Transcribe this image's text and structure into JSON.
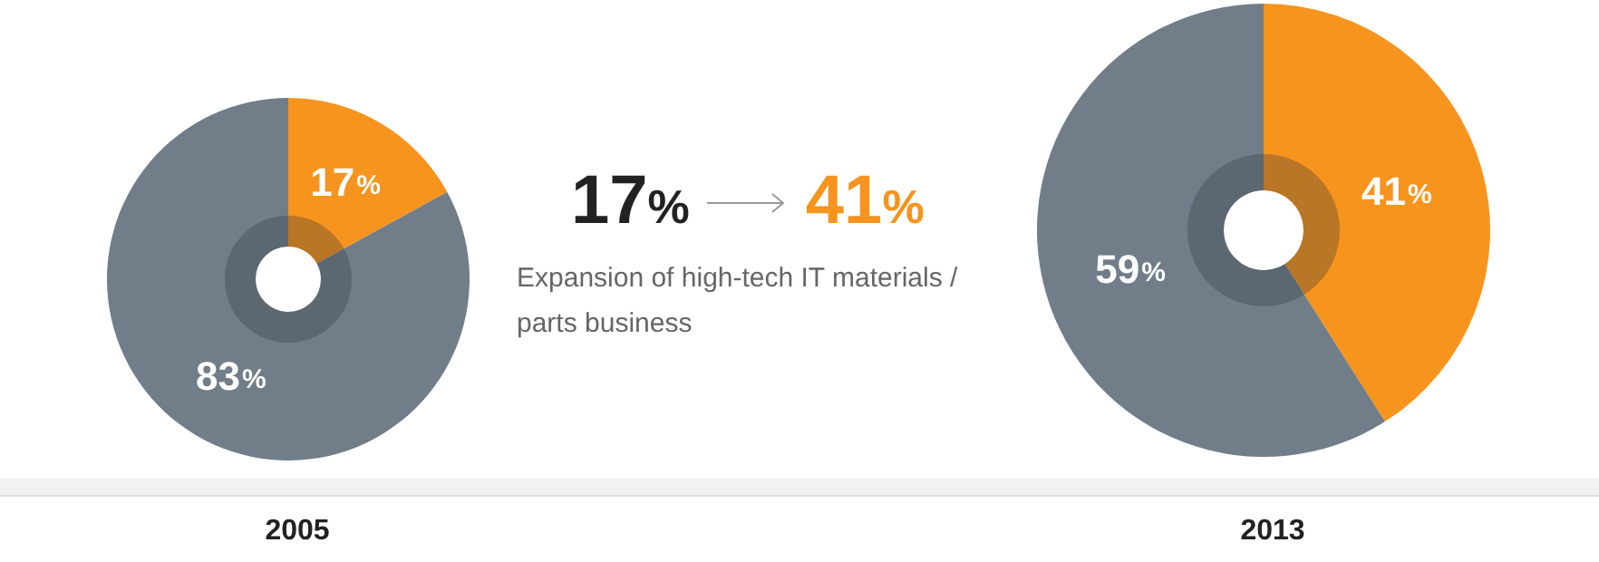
{
  "chart_data": [
    {
      "type": "donut",
      "title": "2005",
      "categories": [
        null,
        null
      ],
      "values": [
        17,
        83
      ],
      "colors": [
        "#f7941d",
        "#717e89"
      ],
      "value_labels": [
        "17%",
        "83%"
      ]
    },
    {
      "type": "other",
      "annotations": [
        "17%",
        "41%",
        "Expansion of high-tech IT materials / parts business"
      ]
    },
    {
      "type": "donut",
      "title": "2013",
      "categories": [
        null,
        null
      ],
      "values": [
        41,
        59
      ],
      "colors": [
        "#f7941d",
        "#717e89"
      ],
      "value_labels": [
        "41%",
        "59%"
      ]
    }
  ]
}
